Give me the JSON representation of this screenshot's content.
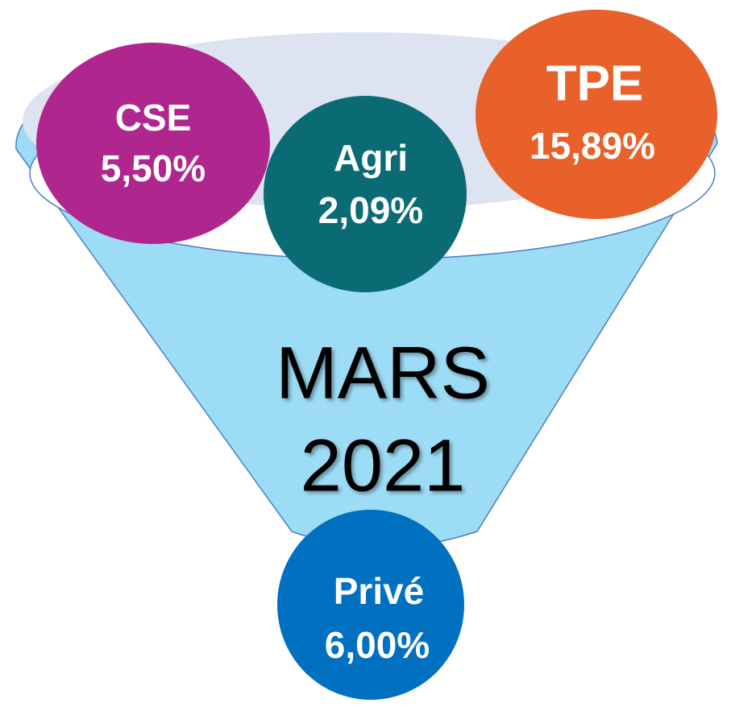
{
  "center": {
    "lines": [
      "MARS",
      "2021"
    ]
  },
  "nodes": [
    {
      "label": "CSE",
      "value": "5,50%"
    },
    {
      "label": "Agri",
      "value": "2,09%"
    },
    {
      "label": "TPE",
      "value": "15,89%"
    },
    {
      "label": "Privé",
      "value": "6,00%"
    }
  ]
}
